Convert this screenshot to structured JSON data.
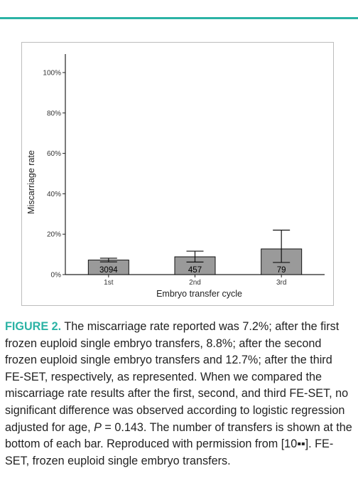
{
  "colors": {
    "accent": "#2bb3a5",
    "bar_fill": "#9a9a9a",
    "bar_stroke": "#111111",
    "axis": "#222222"
  },
  "chart_data": {
    "type": "bar",
    "categories": [
      "1st",
      "2nd",
      "3rd"
    ],
    "values": [
      7.2,
      8.8,
      12.7
    ],
    "error_low": [
      6.3,
      6.2,
      6.0
    ],
    "error_high": [
      8.1,
      11.6,
      22.0
    ],
    "bar_labels": [
      "3094",
      "457",
      "79"
    ],
    "xlabel": "Embryo transfer cycle",
    "ylabel": "Miscarriage rate",
    "ylim": [
      0,
      100
    ],
    "y_ticks": [
      0,
      20,
      40,
      60,
      80,
      100
    ],
    "y_tick_labels": [
      "0%",
      "20%",
      "40%",
      "60%",
      "80%",
      "100%"
    ],
    "grid": false,
    "legend": "none"
  },
  "caption": {
    "label": "FIGURE 2.",
    "text_a": " The miscarriage rate reported was 7.2%; after the first frozen euploid single embryo transfers, 8.8%; after the second frozen euploid single embryo transfers and 12.7%; after the third FE-SET, respectively, as represented. When we compared the miscarriage rate results after the first, second, and third FE-SET, no significant difference was observed according to logistic regression adjusted for age, ",
    "p_symbol": "P",
    "text_b": " = 0.143. The number of transfers is shown at the bottom of each bar. Reproduced with permission from [10▪▪]. FE-SET, frozen euploid single embryo transfers."
  }
}
